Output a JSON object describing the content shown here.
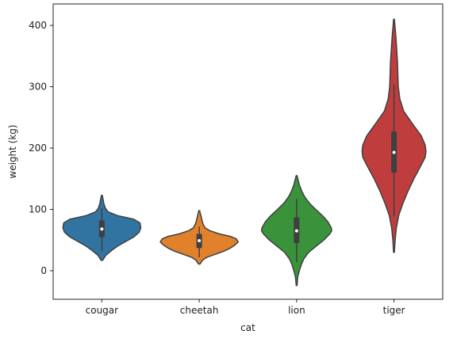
{
  "chart_data": {
    "type": "violin",
    "title": "",
    "xlabel": "cat",
    "ylabel": "weight (kg)",
    "ylim": [
      -46.5,
      435
    ],
    "yticks": [
      0,
      100,
      200,
      300,
      400
    ],
    "categories": [
      "cougar",
      "cheetah",
      "lion",
      "tiger"
    ],
    "grid": false,
    "legend": "none",
    "series": [
      {
        "category": "cougar",
        "color": "#3274a1",
        "range": [
          17,
          123
        ],
        "box": {
          "q1": 55,
          "median": 68,
          "q3": 82
        },
        "whiskers": [
          32,
          102
        ],
        "density": [
          [
            17,
            0.02
          ],
          [
            25,
            0.1
          ],
          [
            33,
            0.25
          ],
          [
            40,
            0.4
          ],
          [
            48,
            0.62
          ],
          [
            55,
            0.82
          ],
          [
            63,
            0.96
          ],
          [
            70,
            1.0
          ],
          [
            78,
            0.98
          ],
          [
            84,
            0.82
          ],
          [
            90,
            0.4
          ],
          [
            96,
            0.16
          ],
          [
            102,
            0.09
          ],
          [
            110,
            0.05
          ],
          [
            117,
            0.03
          ],
          [
            123,
            0.01
          ]
        ]
      },
      {
        "category": "cheetah",
        "color": "#e1812c",
        "range": [
          11,
          98
        ],
        "box": {
          "q1": 37,
          "median": 49,
          "q3": 60
        },
        "whiskers": [
          22,
          72
        ],
        "density": [
          [
            11,
            0.02
          ],
          [
            17,
            0.08
          ],
          [
            22,
            0.2
          ],
          [
            27,
            0.42
          ],
          [
            32,
            0.64
          ],
          [
            37,
            0.8
          ],
          [
            42,
            0.92
          ],
          [
            47,
            1.0
          ],
          [
            52,
            0.95
          ],
          [
            56,
            0.8
          ],
          [
            60,
            0.52
          ],
          [
            65,
            0.28
          ],
          [
            70,
            0.15
          ],
          [
            76,
            0.1
          ],
          [
            82,
            0.07
          ],
          [
            88,
            0.05
          ],
          [
            93,
            0.03
          ],
          [
            98,
            0.01
          ]
        ]
      },
      {
        "category": "lion",
        "color": "#3a923a",
        "range": [
          -24,
          155
        ],
        "box": {
          "q1": 45,
          "median": 65,
          "q3": 87
        },
        "whiskers": [
          14,
          117
        ],
        "density": [
          [
            -24,
            0.01
          ],
          [
            -10,
            0.03
          ],
          [
            0,
            0.07
          ],
          [
            10,
            0.12
          ],
          [
            20,
            0.19
          ],
          [
            30,
            0.31
          ],
          [
            40,
            0.5
          ],
          [
            50,
            0.7
          ],
          [
            60,
            0.85
          ],
          [
            65,
            0.9
          ],
          [
            70,
            0.89
          ],
          [
            80,
            0.8
          ],
          [
            90,
            0.66
          ],
          [
            100,
            0.49
          ],
          [
            110,
            0.33
          ],
          [
            120,
            0.21
          ],
          [
            130,
            0.13
          ],
          [
            140,
            0.07
          ],
          [
            148,
            0.04
          ],
          [
            155,
            0.01
          ]
        ]
      },
      {
        "category": "tiger",
        "color": "#c03d3e",
        "range": [
          30,
          410
        ],
        "box": {
          "q1": 160,
          "median": 193,
          "q3": 227
        },
        "whiskers": [
          88,
          304
        ],
        "density": [
          [
            30,
            0.01
          ],
          [
            50,
            0.03
          ],
          [
            70,
            0.06
          ],
          [
            90,
            0.12
          ],
          [
            110,
            0.23
          ],
          [
            130,
            0.36
          ],
          [
            150,
            0.51
          ],
          [
            170,
            0.68
          ],
          [
            185,
            0.8
          ],
          [
            195,
            0.82
          ],
          [
            205,
            0.8
          ],
          [
            220,
            0.7
          ],
          [
            240,
            0.47
          ],
          [
            260,
            0.25
          ],
          [
            280,
            0.15
          ],
          [
            300,
            0.11
          ],
          [
            320,
            0.1
          ],
          [
            340,
            0.09
          ],
          [
            360,
            0.07
          ],
          [
            380,
            0.05
          ],
          [
            395,
            0.03
          ],
          [
            410,
            0.01
          ]
        ]
      }
    ]
  }
}
